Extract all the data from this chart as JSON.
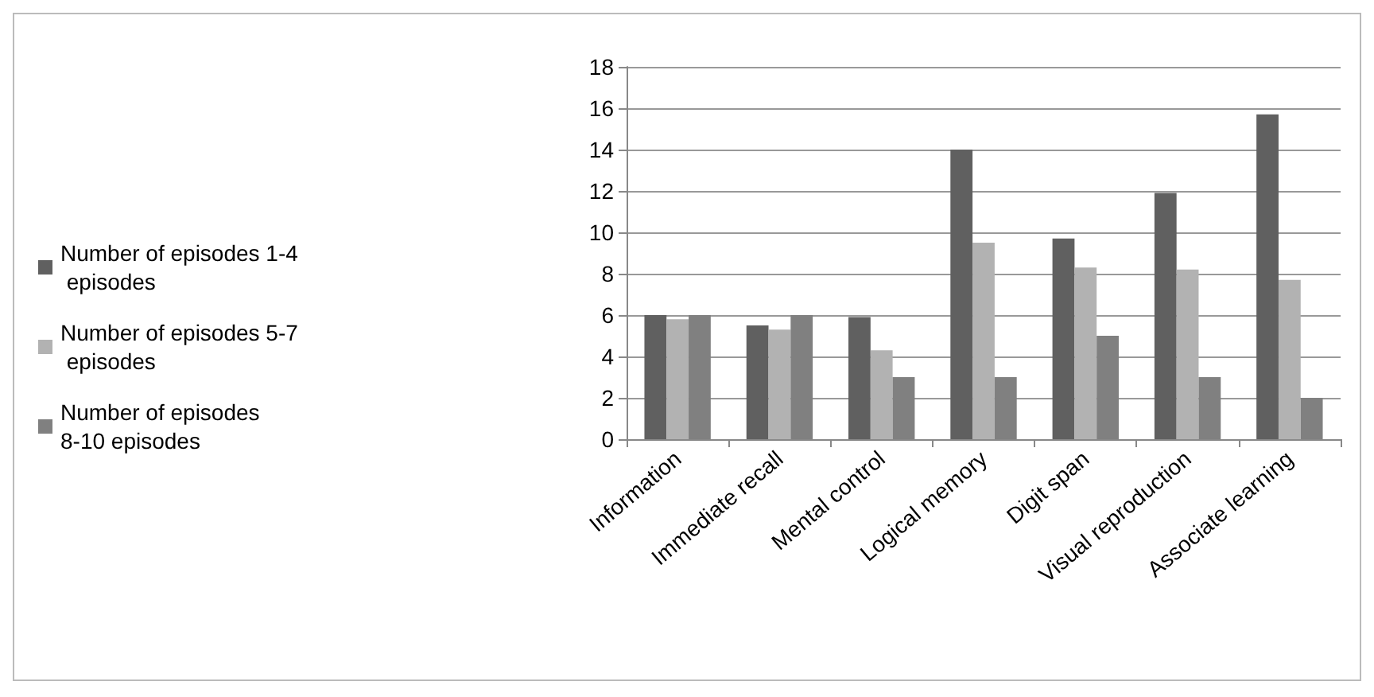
{
  "chart_data": {
    "type": "bar",
    "categories": [
      "Information",
      "Immediate recall",
      "Mental control",
      "Logical memory",
      "Digit span",
      "Visual reproduction",
      "Associate learning"
    ],
    "series": [
      {
        "name": "Number of episodes 1-4 episodes",
        "color": "#606060",
        "values": [
          6,
          5.5,
          5.9,
          14,
          9.7,
          11.9,
          15.7
        ]
      },
      {
        "name": "Number of episodes 5-7 episodes",
        "color": "#b2b2b2",
        "values": [
          5.8,
          5.3,
          4.3,
          9.5,
          8.3,
          8.2,
          7.7
        ]
      },
      {
        "name": "Number of episodes 8-10 episodes",
        "color": "#808080",
        "values": [
          6,
          6,
          3,
          3,
          5,
          3,
          2
        ]
      }
    ],
    "ylim": [
      0,
      18
    ],
    "yticks": [
      0,
      2,
      4,
      6,
      8,
      10,
      12,
      14,
      16,
      18
    ],
    "grid": "y",
    "legend": "left"
  }
}
